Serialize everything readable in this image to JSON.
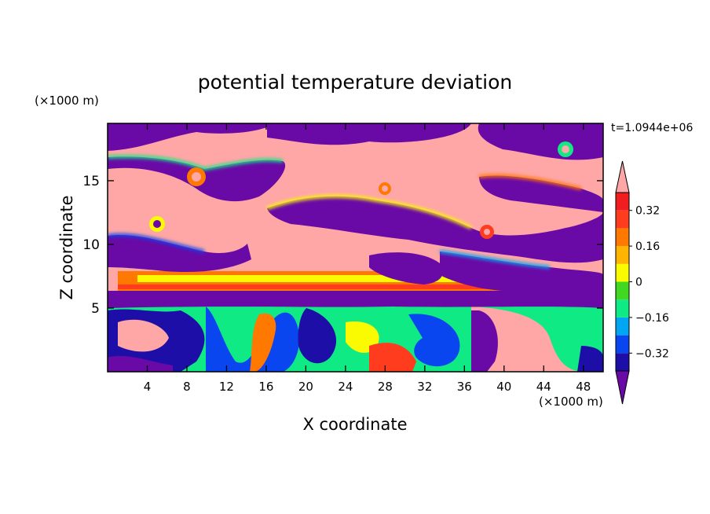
{
  "chart_data": {
    "type": "heatmap",
    "title": "potential temperature deviation",
    "xlabel": "X coordinate",
    "ylabel": "Z coordinate",
    "x_unit": "(×1000 m)",
    "y_unit": "(×1000 m)",
    "time_label": "t=1.0944e+06",
    "xlim": [
      0,
      50
    ],
    "ylim": [
      0,
      19.5
    ],
    "x_ticks": [
      4,
      8,
      12,
      16,
      20,
      24,
      28,
      32,
      36,
      40,
      44,
      48
    ],
    "y_ticks": [
      5,
      10,
      15
    ],
    "x_tick_labels": [
      "4",
      "8",
      "12",
      "16",
      "20",
      "24",
      "28",
      "32",
      "36",
      "40",
      "44",
      "48"
    ],
    "y_tick_labels": [
      "5",
      "10",
      "15"
    ],
    "colorbar": {
      "levels": [
        -0.4,
        -0.32,
        -0.24,
        -0.16,
        -0.08,
        0,
        0.08,
        0.16,
        0.24,
        0.32,
        0.4
      ],
      "tick_values": [
        -0.32,
        -0.16,
        0,
        0.16,
        0.32
      ],
      "tick_labels": [
        "−0.32",
        "−0.16",
        "0",
        "0.16",
        "0.32"
      ],
      "colors": [
        "#6a0aa6",
        "#1e0ea8",
        "#0a46f0",
        "#00a6f2",
        "#10ea84",
        "#40d820",
        "#fafa00",
        "#ffb400",
        "#ff7800",
        "#ff3c1e",
        "#f01e1e",
        "#ffa6a6"
      ],
      "extend": "both"
    },
    "field_description_levels": {
      "upper_layer": "alternating purple (< -0.4) and pink (> 0.4) bands with multicolor edges",
      "inversion_band": "orange/red/yellow band near z = 7",
      "lower_layer": "turbulent mixed colors below z = 5"
    }
  }
}
